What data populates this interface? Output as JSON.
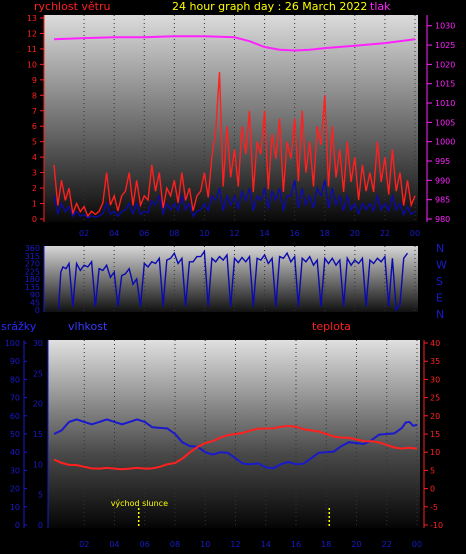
{
  "title": "24 hour graph day : 26 March 2022",
  "labels": {
    "wind": "rychlost větru",
    "pressure": "tlak",
    "rain": "srážky",
    "humidity": "vlhkost",
    "temperature": "teplota",
    "sunrise": "východ slunce"
  },
  "colors": {
    "title": "#ffff00",
    "wind": "#ff2020",
    "wind_dir": "#0a0ab0",
    "pressure": "#ff22ff",
    "humidity": "#1a1acc",
    "temperature": "#ff2020",
    "rain_axis": "#1a1acc",
    "sunrise": "#ffff00"
  },
  "chart_data": [
    {
      "type": "line",
      "name": "wind_and_pressure",
      "x_ticks": [
        "02",
        "04",
        "06",
        "08",
        "10",
        "12",
        "14",
        "16",
        "18",
        "20",
        "22",
        "00"
      ],
      "y_left": {
        "label": "rychlost větru",
        "range": [
          0,
          13
        ],
        "ticks": [
          0,
          1,
          2,
          3,
          4,
          5,
          6,
          7,
          8,
          9,
          10,
          11,
          12,
          13
        ]
      },
      "y_right": {
        "label": "tlak",
        "range": [
          980,
          1032
        ],
        "ticks": [
          980,
          985,
          990,
          995,
          1000,
          1005,
          1010,
          1015,
          1020,
          1025,
          1030
        ]
      },
      "series": [
        {
          "name": "rychlost větru",
          "axis": "left",
          "hours": [
            0,
            0.5,
            1,
            1.5,
            2,
            2.5,
            3,
            3.5,
            4,
            4.5,
            5,
            5.5,
            6,
            6.5,
            7,
            7.5,
            8,
            8.5,
            9,
            9.5,
            10,
            10.5,
            11,
            11.5,
            12,
            12.5,
            13,
            13.5,
            14,
            14.5,
            15,
            15.5,
            16,
            16.5,
            17,
            17.5,
            18,
            18.5,
            19,
            19.5,
            20,
            20.5,
            21,
            21.5,
            22,
            22.5,
            23,
            23.5,
            24
          ],
          "gust": [
            3.5,
            2.5,
            2,
            1,
            0.8,
            0.5,
            0.5,
            3,
            1.5,
            1.5,
            3,
            2.5,
            1.5,
            3.5,
            3,
            2,
            2.5,
            3,
            2,
            1.5,
            3,
            4,
            9.5,
            6,
            4.5,
            6,
            7,
            5,
            7,
            5.5,
            6.5,
            5,
            6.5,
            7,
            5,
            6,
            8,
            6,
            4.5,
            5,
            4,
            3.5,
            3,
            5,
            4,
            4.5,
            3,
            2.5,
            1.5
          ],
          "speed": [
            1.5,
            1,
            0.8,
            0.5,
            0.3,
            0.2,
            0.2,
            1,
            0.5,
            0.5,
            1,
            1,
            0.5,
            1.2,
            1.5,
            1,
            1,
            1.5,
            1,
            0.5,
            1,
            1.5,
            2,
            1.5,
            1.5,
            1.8,
            2,
            1.5,
            2,
            1.8,
            2,
            1.5,
            2.5,
            2,
            1.5,
            2,
            2.5,
            2,
            1.5,
            1.5,
            1,
            1,
            1,
            1.5,
            1,
            1.5,
            1,
            0.8,
            0.5
          ]
        },
        {
          "name": "tlak",
          "axis": "right",
          "hours": [
            0,
            2,
            4,
            6,
            8,
            10,
            12,
            13,
            14,
            15,
            16,
            17,
            18,
            20,
            22,
            24
          ],
          "values": [
            1026.5,
            1026.8,
            1027,
            1027,
            1027.3,
            1027.3,
            1027,
            1026,
            1024.5,
            1023.8,
            1023.6,
            1023.8,
            1024.2,
            1024.8,
            1025.5,
            1026.5
          ]
        }
      ]
    },
    {
      "type": "line",
      "name": "wind_direction",
      "x_ticks": [
        "02",
        "04",
        "06",
        "08",
        "10",
        "12",
        "14",
        "16",
        "18",
        "20",
        "22",
        "00"
      ],
      "y_left": {
        "range": [
          0,
          360
        ],
        "ticks": [
          0,
          45,
          90,
          135,
          180,
          225,
          270,
          315,
          360
        ]
      },
      "y_right_labels": [
        "N",
        "W",
        "S",
        "E",
        "N"
      ],
      "series": [
        {
          "name": "wind direction",
          "hours": [
            0.3,
            0.6,
            1,
            1.5,
            2,
            2.5,
            3,
            3.5,
            4,
            4.5,
            5,
            5.5,
            6,
            6.5,
            7,
            7.5,
            8,
            8.5,
            9,
            9.5,
            10,
            10.5,
            11,
            11.5,
            12,
            12.5,
            13,
            13.5,
            14,
            14.5,
            15,
            15.5,
            16,
            16.5,
            17,
            17.5,
            18,
            18.5,
            19,
            19.5,
            20,
            20.5,
            21,
            21.5,
            22,
            22.5,
            23,
            23.5
          ],
          "values": [
            0,
            250,
            270,
            270,
            260,
            280,
            240,
            260,
            220,
            200,
            240,
            180,
            270,
            280,
            300,
            290,
            330,
            300,
            280,
            310,
            340,
            300,
            310,
            320,
            300,
            305,
            310,
            300,
            320,
            300,
            310,
            330,
            310,
            300,
            310,
            290,
            300,
            300,
            290,
            300,
            290,
            300,
            290,
            300,
            310,
            300,
            30,
            330
          ]
        }
      ]
    },
    {
      "type": "line",
      "name": "humidity_and_temperature",
      "x_ticks": [
        "02",
        "04",
        "06",
        "08",
        "10",
        "12",
        "14",
        "16",
        "18",
        "20",
        "22",
        "00"
      ],
      "y_rain": {
        "label": "srážky",
        "range": [
          0,
          100
        ],
        "ticks": [
          0,
          10,
          20,
          30,
          40,
          50,
          60,
          70,
          80,
          90,
          100
        ]
      },
      "y_humidity": {
        "label": "vlhkost",
        "range": [
          0,
          30
        ],
        "ticks": [
          0,
          5,
          10,
          15,
          20,
          25,
          30
        ]
      },
      "y_right": {
        "label": "teplota",
        "range": [
          -10,
          40
        ],
        "ticks": [
          -10,
          -5,
          0,
          5,
          10,
          15,
          20,
          25,
          30,
          35,
          40
        ]
      },
      "series": [
        {
          "name": "vlhkost",
          "hours": [
            0,
            1,
            2,
            3,
            4,
            5,
            6,
            7,
            8,
            9,
            10,
            11,
            12,
            13,
            14,
            15,
            16,
            17,
            18,
            19,
            20,
            21,
            22,
            23,
            23.5,
            24
          ],
          "values": [
            15,
            17,
            17,
            17,
            17,
            17,
            17,
            16,
            15,
            13,
            12,
            12,
            11,
            10,
            9.5,
            10,
            10,
            11,
            12,
            13,
            13.5,
            14,
            15,
            16,
            17,
            16.5
          ]
        },
        {
          "name": "teplota",
          "hours": [
            0,
            1,
            2,
            3,
            4,
            5,
            6,
            7,
            8,
            9,
            10,
            11,
            12,
            13,
            14,
            15,
            16,
            17,
            18,
            19,
            20,
            21,
            22,
            23,
            24
          ],
          "values": [
            8,
            6.5,
            6,
            5.5,
            5.5,
            5.5,
            5.5,
            6,
            7,
            10,
            12.5,
            14,
            15,
            16,
            16.5,
            17,
            17,
            16,
            15,
            14,
            13.5,
            13,
            12,
            11,
            11
          ]
        }
      ],
      "annotations": [
        {
          "text": "východ slunce",
          "hour": 5.6
        },
        {
          "text": "",
          "hour": 18.2
        }
      ]
    }
  ]
}
